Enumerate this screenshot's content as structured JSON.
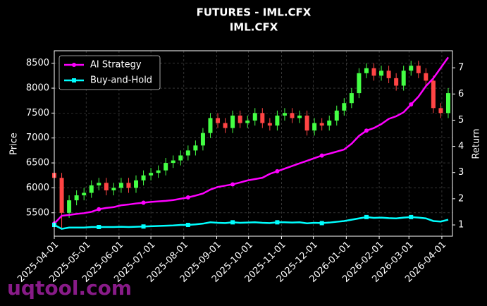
{
  "chart_data": {
    "type": "candlestick",
    "title": "FUTURES - IML.CFX",
    "subtitle": "IML.CFX",
    "ylabel": "Price",
    "y2label": "Return",
    "watermark": "uqtool.com",
    "x": [
      "2025-04-01",
      "2025-04-08",
      "2025-04-15",
      "2025-04-22",
      "2025-04-29",
      "2025-05-06",
      "2025-05-13",
      "2025-05-20",
      "2025-05-27",
      "2025-06-03",
      "2025-06-10",
      "2025-06-17",
      "2025-06-24",
      "2025-07-01",
      "2025-07-08",
      "2025-07-15",
      "2025-07-22",
      "2025-07-29",
      "2025-08-05",
      "2025-08-12",
      "2025-08-19",
      "2025-08-26",
      "2025-09-02",
      "2025-09-09",
      "2025-09-16",
      "2025-09-23",
      "2025-09-30",
      "2025-10-07",
      "2025-10-14",
      "2025-10-21",
      "2025-10-28",
      "2025-11-04",
      "2025-11-11",
      "2025-11-18",
      "2025-11-25",
      "2025-12-02",
      "2025-12-09",
      "2025-12-16",
      "2025-12-23",
      "2025-12-30",
      "2026-01-06",
      "2026-01-13",
      "2026-01-20",
      "2026-01-27",
      "2026-02-03",
      "2026-02-10",
      "2026-02-17",
      "2026-02-24",
      "2026-03-03",
      "2026-03-10",
      "2026-03-17",
      "2026-03-24",
      "2026-03-31",
      "2026-04-07"
    ],
    "open": [
      6300,
      6200,
      5500,
      5750,
      5850,
      5900,
      6050,
      6100,
      5950,
      6000,
      6100,
      6000,
      6150,
      6250,
      6300,
      6350,
      6500,
      6550,
      6650,
      6750,
      6850,
      7100,
      7400,
      7300,
      7200,
      7450,
      7300,
      7350,
      7500,
      7300,
      7250,
      7450,
      7500,
      7400,
      7450,
      7150,
      7300,
      7250,
      7350,
      7550,
      7700,
      7900,
      8300,
      8400,
      8250,
      8350,
      8200,
      8050,
      8350,
      8450,
      8300,
      8150,
      7600,
      7500
    ],
    "high": [
      6400,
      6300,
      5850,
      5950,
      6000,
      6150,
      6200,
      6200,
      6100,
      6200,
      6200,
      6250,
      6350,
      6400,
      6450,
      6600,
      6650,
      6750,
      6850,
      6950,
      7200,
      7500,
      7500,
      7400,
      7550,
      7550,
      7450,
      7600,
      7600,
      7400,
      7550,
      7600,
      7600,
      7550,
      7550,
      7400,
      7400,
      7450,
      7650,
      7800,
      8000,
      8400,
      8500,
      8500,
      8450,
      8450,
      8300,
      8450,
      8550,
      8550,
      8400,
      8250,
      7700,
      8000
    ],
    "low": [
      6100,
      5200,
      5400,
      5650,
      5750,
      5800,
      5950,
      5850,
      5850,
      5900,
      5900,
      5900,
      6050,
      6150,
      6200,
      6250,
      6400,
      6450,
      6550,
      6650,
      6750,
      7000,
      7200,
      7100,
      7100,
      7200,
      7200,
      7250,
      7200,
      7150,
      7150,
      7350,
      7300,
      7300,
      7050,
      7050,
      7150,
      7150,
      7250,
      7450,
      7600,
      7800,
      8200,
      8150,
      8150,
      8100,
      7950,
      7950,
      8250,
      8200,
      8050,
      7500,
      7400,
      7400
    ],
    "close": [
      6200,
      5500,
      5750,
      5850,
      5900,
      6050,
      6100,
      5950,
      6000,
      6100,
      6000,
      6150,
      6250,
      6300,
      6350,
      6500,
      6550,
      6650,
      6750,
      6850,
      7100,
      7400,
      7300,
      7200,
      7450,
      7300,
      7350,
      7500,
      7300,
      7250,
      7450,
      7500,
      7400,
      7450,
      7150,
      7300,
      7250,
      7350,
      7550,
      7700,
      7900,
      8300,
      8400,
      8250,
      8350,
      8200,
      8050,
      8350,
      8450,
      8300,
      8150,
      7600,
      7500,
      7900
    ],
    "up_color": "#44ff44",
    "down_color": "#ff4444",
    "series": [
      {
        "name": "AI Strategy",
        "color": "#ff00ff",
        "marker": "circle",
        "axis": "y2",
        "values": [
          1.05,
          1.35,
          1.38,
          1.42,
          1.45,
          1.5,
          1.6,
          1.65,
          1.68,
          1.75,
          1.78,
          1.82,
          1.85,
          1.88,
          1.9,
          1.92,
          1.95,
          2.0,
          2.05,
          2.12,
          2.2,
          2.35,
          2.45,
          2.5,
          2.55,
          2.62,
          2.7,
          2.75,
          2.8,
          2.95,
          3.05,
          3.15,
          3.25,
          3.35,
          3.45,
          3.55,
          3.65,
          3.72,
          3.8,
          3.88,
          4.1,
          4.4,
          4.6,
          4.7,
          4.85,
          5.05,
          5.15,
          5.3,
          5.6,
          5.9,
          6.3,
          6.6,
          7.0,
          7.4
        ]
      },
      {
        "name": "Buy-and-Hold",
        "color": "#00ffff",
        "marker": "square",
        "axis": "y2",
        "values": [
          1.0,
          0.85,
          0.9,
          0.9,
          0.9,
          0.92,
          0.92,
          0.92,
          0.92,
          0.93,
          0.92,
          0.93,
          0.94,
          0.95,
          0.96,
          0.97,
          0.98,
          1.0,
          1.0,
          1.02,
          1.05,
          1.1,
          1.08,
          1.07,
          1.1,
          1.08,
          1.09,
          1.1,
          1.08,
          1.07,
          1.1,
          1.1,
          1.09,
          1.1,
          1.06,
          1.08,
          1.07,
          1.09,
          1.12,
          1.15,
          1.2,
          1.25,
          1.3,
          1.27,
          1.28,
          1.26,
          1.25,
          1.28,
          1.3,
          1.28,
          1.25,
          1.15,
          1.13,
          1.2
        ]
      }
    ],
    "xlim": [
      "2025-04-01",
      "2026-04-11"
    ],
    "xticks": [
      "2025-04-01",
      "2025-05-01",
      "2025-06-01",
      "2025-07-01",
      "2025-08-01",
      "2025-09-01",
      "2025-10-01",
      "2025-11-01",
      "2025-12-01",
      "2026-01-01",
      "2026-02-01",
      "2026-03-01",
      "2026-04-01"
    ],
    "ylim": [
      5030,
      8750
    ],
    "yticks": [
      5500,
      6000,
      6500,
      7000,
      7500,
      8000,
      8500
    ],
    "y2lim": [
      0.57,
      7.65
    ],
    "y2ticks": [
      1,
      2,
      3,
      4,
      5,
      6,
      7
    ],
    "grid": true,
    "legend": "upper left"
  }
}
